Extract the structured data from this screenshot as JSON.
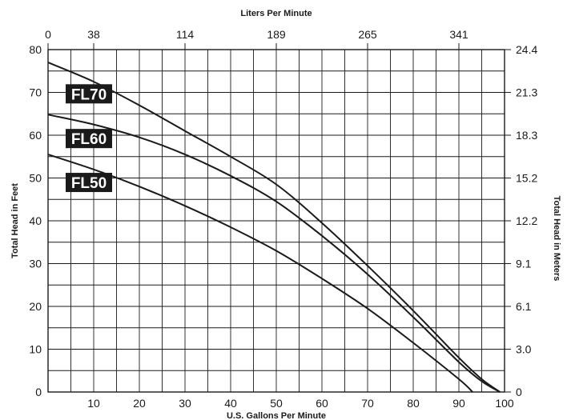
{
  "chart_data": {
    "type": "line",
    "title": "",
    "xlabel": "U.S. Gallons Per Minute",
    "ylabel": "Total Head in Feet",
    "x2label": "Liters Per Minute",
    "y2label": "Total Head in Meters",
    "xlim": [
      0,
      100
    ],
    "ylim": [
      0,
      80
    ],
    "x_ticks": [
      "10",
      "20",
      "30",
      "40",
      "50",
      "60",
      "70",
      "80",
      "90",
      "100"
    ],
    "y_ticks": [
      "0",
      "10",
      "20",
      "30",
      "40",
      "50",
      "60",
      "70",
      "80"
    ],
    "x2_ticks": [
      {
        "label": "0",
        "value": 0
      },
      {
        "label": "38",
        "value": 10
      },
      {
        "label": "114",
        "value": 30
      },
      {
        "label": "189",
        "value": 50
      },
      {
        "label": "265",
        "value": 70
      },
      {
        "label": "341",
        "value": 90
      }
    ],
    "y2_ticks": [
      {
        "label": "0",
        "value": 0
      },
      {
        "label": "3.0",
        "value": 10
      },
      {
        "label": "6.1",
        "value": 20
      },
      {
        "label": "9.1",
        "value": 30
      },
      {
        "label": "12.2",
        "value": 40
      },
      {
        "label": "15.2",
        "value": 50
      },
      {
        "label": "18.3",
        "value": 60
      },
      {
        "label": "21.3",
        "value": 70
      },
      {
        "label": "24.4",
        "value": 80
      }
    ],
    "grid": true,
    "series": [
      {
        "name": "FL70",
        "x": [
          0,
          10,
          20,
          30,
          40,
          50,
          60,
          70,
          80,
          90,
          95,
          99
        ],
        "y": [
          77,
          72.5,
          67,
          61,
          55,
          48.5,
          39.5,
          29.5,
          19,
          8,
          3,
          0
        ]
      },
      {
        "name": "FL60",
        "x": [
          0,
          10,
          20,
          30,
          40,
          50,
          60,
          70,
          80,
          90,
          95,
          99
        ],
        "y": [
          64.8,
          62.5,
          59.5,
          55.5,
          50.5,
          44.5,
          36.5,
          27.5,
          17.5,
          7,
          2.5,
          0
        ]
      },
      {
        "name": "FL50",
        "x": [
          0,
          10,
          20,
          30,
          40,
          50,
          60,
          70,
          80,
          90,
          93
        ],
        "y": [
          55.5,
          52,
          48,
          43.5,
          38.5,
          33,
          26.5,
          19.5,
          11.5,
          3,
          0
        ]
      }
    ],
    "legend": [
      {
        "label": "FL70",
        "anchor_series": "FL70"
      },
      {
        "label": "FL60",
        "anchor_series": "FL60"
      },
      {
        "label": "FL50",
        "anchor_series": "FL50"
      }
    ],
    "line_color": "#1a1a1a",
    "label_bg_color": "#1a1a1a"
  }
}
